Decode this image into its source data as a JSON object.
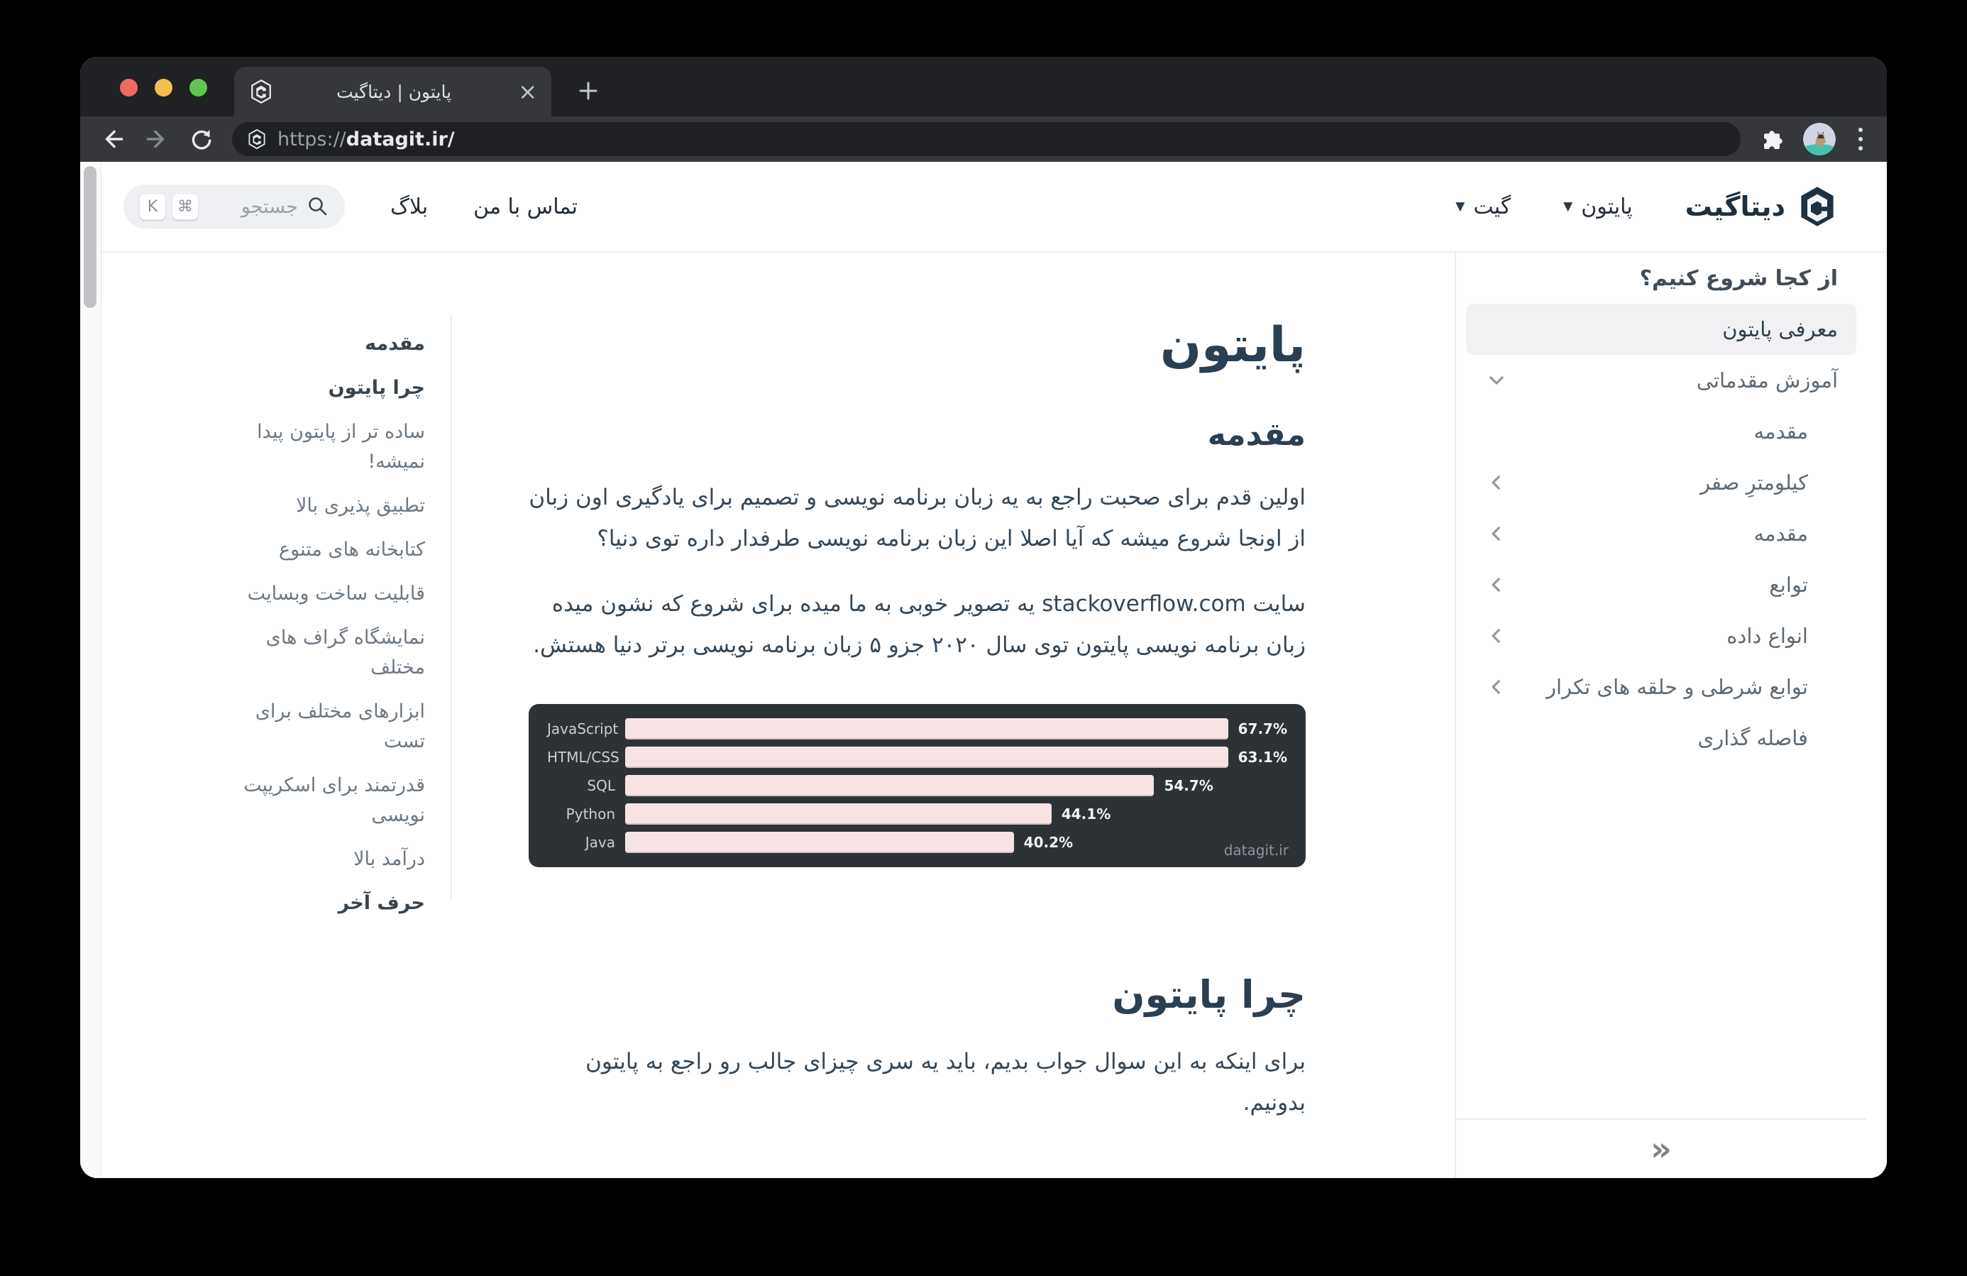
{
  "browser": {
    "tab": {
      "title": "پایتون | دیتاگیت",
      "close_glyph": "×"
    },
    "address": {
      "protocol": "https://",
      "host": "datagit.ir/"
    }
  },
  "header": {
    "brand": "دیتاگیت",
    "nav_python": "پایتون",
    "nav_git": "گیت",
    "nav_contact": "تماس با من",
    "nav_blog": "بلاگ",
    "caret_glyph": "▼",
    "search": {
      "placeholder": "جستجو",
      "kbd_cmd": "⌘",
      "kbd_k": "K"
    }
  },
  "sidebar": {
    "section_title": "از کجا شروع کنیم؟",
    "items": [
      {
        "label": "معرفی پایتون",
        "active": true,
        "indent": false,
        "chevron": "none"
      },
      {
        "label": "آموزش مقدماتی",
        "active": false,
        "indent": false,
        "chevron": "down"
      },
      {
        "label": "مقدمه",
        "active": false,
        "indent": true,
        "chevron": "none"
      },
      {
        "label": "کیلومترِ صفر",
        "active": false,
        "indent": true,
        "chevron": "left"
      },
      {
        "label": "مقدمه",
        "active": false,
        "indent": true,
        "chevron": "left"
      },
      {
        "label": "توابع",
        "active": false,
        "indent": true,
        "chevron": "left"
      },
      {
        "label": "انواع داده",
        "active": false,
        "indent": true,
        "chevron": "left"
      },
      {
        "label": "توابع شرطی و حلقه های تکرار",
        "active": false,
        "indent": true,
        "chevron": "left"
      },
      {
        "label": "فاصله گذاری",
        "active": false,
        "indent": true,
        "chevron": "none"
      }
    ],
    "collapse_icon": "»"
  },
  "toc": {
    "items": [
      {
        "label": "مقدمه",
        "bold": true
      },
      {
        "label": "چرا پایتون",
        "bold": true
      },
      {
        "label": "ساده تر از پایتون پیدا نمیشه!",
        "bold": false
      },
      {
        "label": "تطبیق پذیری بالا",
        "bold": false
      },
      {
        "label": "کتابخانه های متنوع",
        "bold": false
      },
      {
        "label": "قابلیت ساخت وبسایت",
        "bold": false
      },
      {
        "label": "نمایشگاه گراف های مختلف",
        "bold": false
      },
      {
        "label": "ابزارهای مختلف برای تست",
        "bold": false
      },
      {
        "label": "قدرتمند برای اسکریپت نویسی",
        "bold": false
      },
      {
        "label": "درآمد بالا",
        "bold": false
      },
      {
        "label": "حرف آخر",
        "bold": true
      }
    ]
  },
  "article": {
    "title": "پایتون",
    "h2_intro": "مقدمه",
    "p1": "اولین قدم برای صحبت راجع به یه زبان برنامه نویسی و تصمیم برای یادگیری اون زبان از اونجا شروع میشه که آیا اصلا این زبان برنامه نویسی طرفدار داره توی دنیا؟",
    "p2": "سایت stackoverflow.com یه تصویر خوبی به ما میده برای شروع که نشون میده زبان برنامه نویسی پایتون توی سال ۲۰۲۰ جزو ۵ زبان برنامه نویسی برتر دنیا هستش.",
    "h2_why": "چرا پایتون",
    "p3": "برای اینکه به این سوال جواب بدیم، باید یه سری چیزای جالب رو راجع به پایتون بدونیم."
  },
  "chart_data": {
    "type": "bar",
    "orientation": "horizontal",
    "categories": [
      "JavaScript",
      "HTML/CSS",
      "SQL",
      "Python",
      "Java"
    ],
    "values": [
      67.7,
      63.1,
      54.7,
      44.1,
      40.2
    ],
    "unit": "%",
    "xlim": [
      0,
      68.5
    ],
    "title": "",
    "xlabel": "",
    "ylabel": "",
    "legend": "none",
    "grid": false,
    "background": "#2d3237",
    "bar_color": "#f7e3e3",
    "watermark": "datagit.ir"
  }
}
